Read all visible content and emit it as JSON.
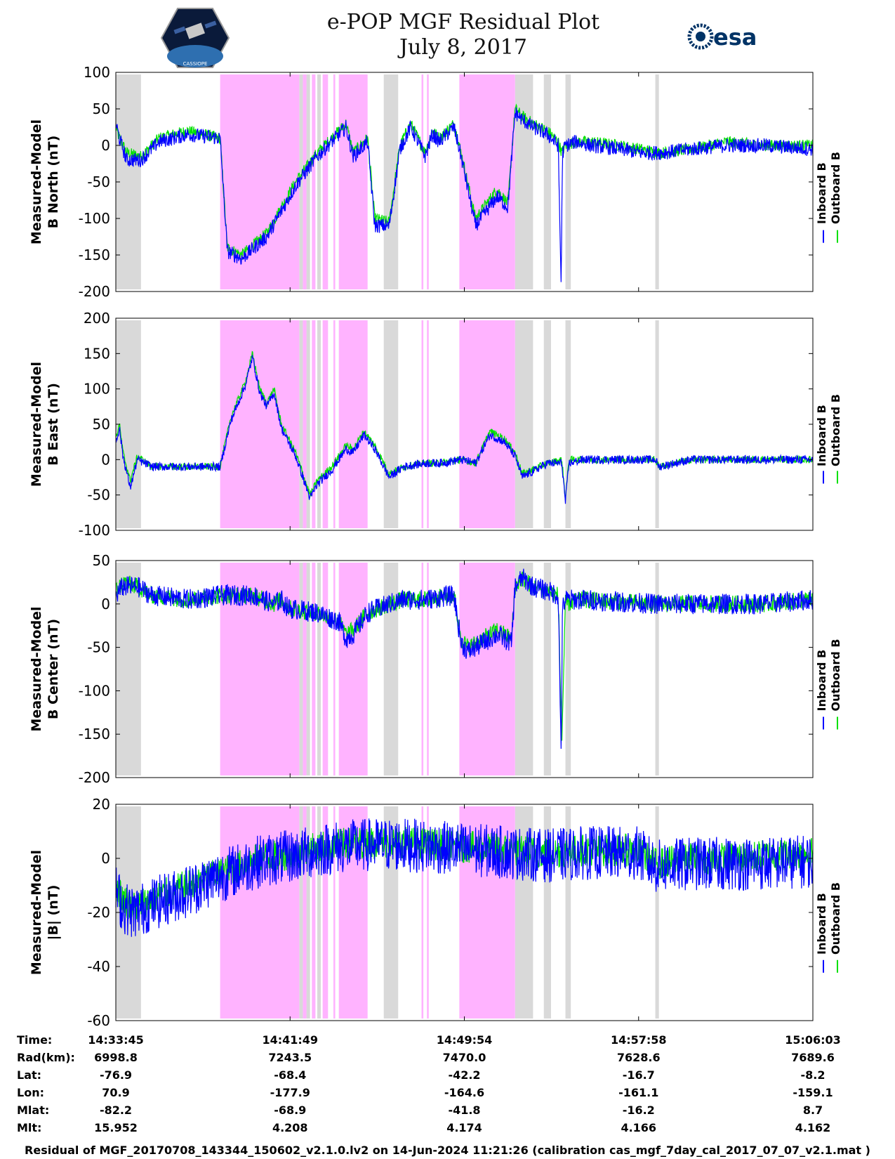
{
  "header": {
    "title_line1": "e-POP MGF Residual Plot",
    "title_line2": "July 8, 2017",
    "logo_left_text": "CASSIOPE",
    "logo_right_text": "esa"
  },
  "colors": {
    "inboard": "#0000ff",
    "outboard": "#00e000",
    "gray_band": "#d9d9d9",
    "magenta_band": "#ffb3ff"
  },
  "legend": {
    "inboard_label": "Inboard B",
    "outboard_label": "Outboard B"
  },
  "time_axis": {
    "ticks": [
      "14:33:45",
      "14:41:49",
      "14:49:54",
      "14:57:58",
      "15:06:03"
    ],
    "duration_s": 1938
  },
  "shaded_intervals": {
    "gray": [
      [
        0,
        70
      ],
      [
        510,
        520
      ],
      [
        530,
        540
      ],
      [
        560,
        570
      ],
      [
        745,
        785
      ],
      [
        1110,
        1160
      ],
      [
        1190,
        1210
      ],
      [
        1250,
        1265
      ],
      [
        1500,
        1510
      ]
    ],
    "magenta": [
      [
        290,
        510
      ],
      [
        520,
        530
      ],
      [
        545,
        555
      ],
      [
        575,
        590
      ],
      [
        605,
        610
      ],
      [
        620,
        700
      ],
      [
        850,
        855
      ],
      [
        865,
        870
      ],
      [
        955,
        1110
      ]
    ]
  },
  "chart_data": [
    {
      "type": "line",
      "title": "B North",
      "ylabel_line1": "Measured-Model",
      "ylabel_line2": "B North (nT)",
      "ylim": [
        -200,
        100
      ],
      "yticks": [
        "100",
        "50",
        "0",
        "-50",
        "-100",
        "-150",
        "-200"
      ],
      "series": [
        {
          "name": "Outboard B",
          "t": [
            0,
            10,
            30,
            70,
            120,
            200,
            290,
            310,
            350,
            420,
            500,
            560,
            600,
            640,
            660,
            700,
            720,
            760,
            790,
            820,
            860,
            880,
            900,
            940,
            960,
            1000,
            1060,
            1090,
            1110,
            1130,
            1160,
            1200,
            1230,
            1240,
            1250,
            1280,
            1320,
            1400,
            1460,
            1500,
            1520,
            1600,
            1700,
            1800,
            1938
          ],
          "values": [
            25,
            10,
            -10,
            -15,
            10,
            20,
            10,
            -140,
            -150,
            -120,
            -50,
            -10,
            10,
            30,
            -10,
            10,
            -100,
            -105,
            0,
            30,
            -10,
            20,
            10,
            30,
            -10,
            -100,
            -60,
            -80,
            50,
            40,
            30,
            20,
            5,
            -10,
            0,
            5,
            5,
            0,
            -5,
            -10,
            -10,
            -5,
            5,
            0,
            0
          ],
          "noise": 8
        },
        {
          "name": "Inboard B",
          "t": [
            0,
            10,
            30,
            70,
            120,
            200,
            290,
            310,
            350,
            420,
            500,
            560,
            600,
            640,
            660,
            700,
            720,
            760,
            790,
            820,
            860,
            880,
            900,
            940,
            960,
            1000,
            1060,
            1090,
            1110,
            1130,
            1160,
            1200,
            1230,
            1238,
            1242,
            1250,
            1280,
            1320,
            1400,
            1460,
            1500,
            1520,
            1600,
            1700,
            1800,
            1938
          ],
          "values": [
            30,
            10,
            -20,
            -20,
            5,
            15,
            10,
            -145,
            -155,
            -125,
            -55,
            -15,
            5,
            25,
            -15,
            5,
            -110,
            -110,
            -5,
            25,
            -15,
            15,
            5,
            25,
            -15,
            -110,
            -70,
            -85,
            45,
            35,
            25,
            15,
            0,
            -190,
            -10,
            0,
            5,
            0,
            -5,
            -10,
            -10,
            -10,
            -5,
            0,
            0,
            -5
          ],
          "noise": 10
        }
      ]
    },
    {
      "type": "line",
      "title": "B East",
      "ylabel_line1": "Measured-Model",
      "ylabel_line2": "B East (nT)",
      "ylim": [
        -100,
        200
      ],
      "yticks": [
        "200",
        "150",
        "100",
        "50",
        "0",
        "-50",
        "-100"
      ],
      "series": [
        {
          "name": "Outboard B",
          "t": [
            0,
            10,
            20,
            40,
            60,
            100,
            200,
            290,
            320,
            360,
            380,
            400,
            420,
            440,
            460,
            500,
            540,
            560,
            600,
            640,
            660,
            690,
            720,
            760,
            800,
            860,
            900,
            960,
            1000,
            1040,
            1080,
            1110,
            1130,
            1200,
            1240,
            1250,
            1260,
            1300,
            1400,
            1500,
            1510,
            1600,
            1700,
            1800,
            1938
          ],
          "values": [
            30,
            50,
            10,
            -30,
            5,
            -10,
            -10,
            -10,
            60,
            110,
            150,
            100,
            80,
            100,
            50,
            10,
            -50,
            -30,
            -10,
            20,
            15,
            40,
            20,
            -20,
            -10,
            -5,
            -5,
            0,
            -5,
            40,
            30,
            10,
            -20,
            -5,
            0,
            -55,
            0,
            0,
            0,
            0,
            -10,
            0,
            0,
            0,
            0
          ],
          "noise": 5
        },
        {
          "name": "Inboard B",
          "t": [
            0,
            10,
            20,
            40,
            60,
            100,
            200,
            290,
            320,
            360,
            380,
            400,
            420,
            440,
            460,
            500,
            540,
            560,
            600,
            640,
            660,
            690,
            720,
            760,
            800,
            860,
            900,
            960,
            1000,
            1040,
            1080,
            1110,
            1130,
            1200,
            1240,
            1250,
            1260,
            1300,
            1400,
            1500,
            1510,
            1600,
            1700,
            1800,
            1938
          ],
          "values": [
            25,
            45,
            5,
            -40,
            0,
            -10,
            -10,
            -10,
            55,
            105,
            145,
            95,
            75,
            95,
            45,
            5,
            -55,
            -35,
            -15,
            15,
            10,
            35,
            15,
            -25,
            -10,
            -5,
            -5,
            0,
            -5,
            35,
            25,
            5,
            -25,
            -5,
            -5,
            -60,
            -5,
            0,
            0,
            0,
            -10,
            0,
            0,
            0,
            0
          ],
          "noise": 6
        }
      ]
    },
    {
      "type": "line",
      "title": "B Center",
      "ylabel_line1": "Measured-Model",
      "ylabel_line2": "B Center (nT)",
      "ylim": [
        -200,
        50
      ],
      "yticks": [
        "50",
        "0",
        "-50",
        "-100",
        "-150",
        "-200"
      ],
      "series": [
        {
          "name": "Outboard B",
          "t": [
            0,
            20,
            60,
            100,
            200,
            300,
            380,
            440,
            460,
            480,
            560,
            620,
            640,
            660,
            700,
            760,
            800,
            860,
            940,
            960,
            980,
            1060,
            1100,
            1110,
            1130,
            1160,
            1200,
            1230,
            1240,
            1250,
            1300,
            1500,
            1600,
            1700,
            1800,
            1938
          ],
          "values": [
            15,
            25,
            20,
            10,
            5,
            10,
            10,
            0,
            5,
            -5,
            -10,
            -20,
            -35,
            -30,
            -10,
            0,
            5,
            5,
            10,
            -40,
            -50,
            -30,
            -40,
            20,
            30,
            20,
            15,
            10,
            -160,
            0,
            5,
            0,
            0,
            0,
            0,
            5
          ],
          "noise": 10
        },
        {
          "name": "Inboard B",
          "t": [
            0,
            20,
            60,
            100,
            200,
            300,
            380,
            440,
            460,
            480,
            560,
            620,
            640,
            660,
            700,
            760,
            800,
            860,
            940,
            960,
            980,
            1060,
            1100,
            1110,
            1130,
            1160,
            1200,
            1230,
            1238,
            1242,
            1250,
            1300,
            1500,
            1600,
            1700,
            1800,
            1938
          ],
          "values": [
            10,
            20,
            20,
            10,
            5,
            10,
            10,
            0,
            5,
            -5,
            -10,
            -20,
            -40,
            -35,
            -10,
            0,
            5,
            5,
            10,
            -45,
            -55,
            -35,
            -45,
            20,
            30,
            20,
            15,
            10,
            -170,
            -5,
            5,
            5,
            0,
            0,
            0,
            0,
            5
          ],
          "noise": 12
        }
      ]
    },
    {
      "type": "line",
      "title": "|B|",
      "ylabel_line1": "Measured-Model",
      "ylabel_line2": "|B| (nT)",
      "ylim": [
        -60,
        20
      ],
      "yticks": [
        "20",
        "0",
        "-20",
        "-40",
        "-60"
      ],
      "series": [
        {
          "name": "Outboard B",
          "t": [
            0,
            20,
            50,
            100,
            200,
            300,
            400,
            500,
            600,
            700,
            800,
            900,
            1000,
            1100,
            1200,
            1300,
            1400,
            1450,
            1500,
            1600,
            1700,
            1800,
            1938
          ],
          "values": [
            -10,
            -15,
            -18,
            -15,
            -10,
            -5,
            0,
            2,
            5,
            6,
            6,
            5,
            4,
            3,
            2,
            3,
            3,
            3,
            -2,
            0,
            0,
            1,
            2
          ],
          "noise": 6
        },
        {
          "name": "Inboard B",
          "t": [
            0,
            20,
            50,
            100,
            200,
            300,
            400,
            500,
            600,
            700,
            800,
            900,
            1000,
            1100,
            1200,
            1300,
            1400,
            1450,
            1500,
            1600,
            1700,
            1800,
            1938
          ],
          "values": [
            -12,
            -18,
            -20,
            -17,
            -12,
            -6,
            -1,
            1,
            4,
            5,
            5,
            4,
            3,
            2,
            1,
            2,
            2,
            2,
            -3,
            -2,
            -2,
            -2,
            -1
          ],
          "noise": 10
        }
      ]
    }
  ],
  "orbit_table": {
    "labels": [
      "Time:",
      "Rad(km):",
      "Lat:",
      "Lon:",
      "Mlat:",
      "Mlt:"
    ],
    "columns": [
      [
        "14:33:45",
        "6998.8",
        "-76.9",
        "70.9",
        "-82.2",
        "15.952"
      ],
      [
        "14:41:49",
        "7243.5",
        "-68.4",
        "-177.9",
        "-68.9",
        "4.208"
      ],
      [
        "14:49:54",
        "7470.0",
        "-42.2",
        "-164.6",
        "-41.8",
        "4.174"
      ],
      [
        "14:57:58",
        "7628.6",
        "-16.7",
        "-161.1",
        "-16.2",
        "4.166"
      ],
      [
        "15:06:03",
        "7689.6",
        "-8.2",
        "-159.1",
        "8.7",
        "4.162"
      ]
    ]
  },
  "footer": {
    "text": "Residual of MGF_20170708_143344_150602_v2.1.0.lv2 on 14-Jun-2024 11:21:26 (calibration cas_mgf_7day_cal_2017_07_07_v2.1.mat )"
  }
}
